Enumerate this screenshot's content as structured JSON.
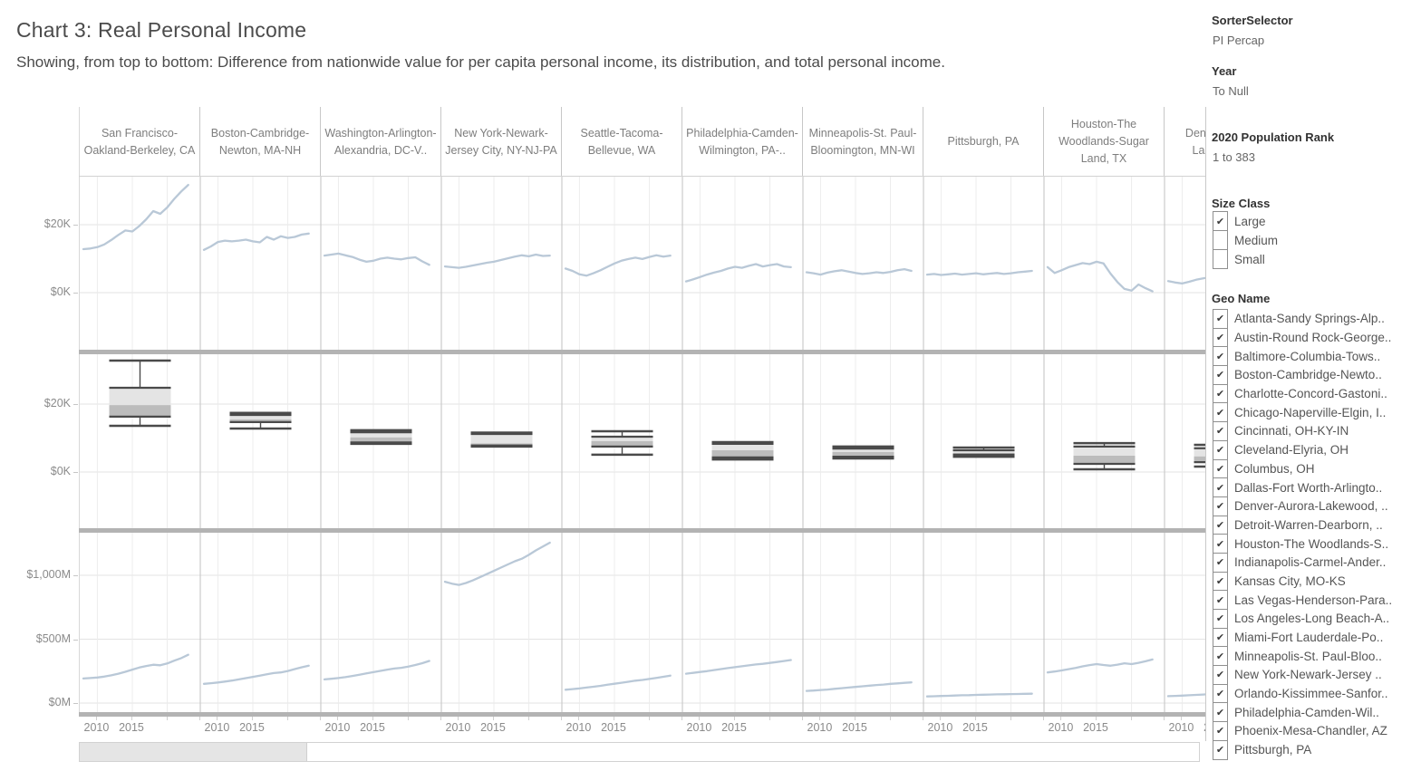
{
  "header": {
    "title": "Chart 3: Real Personal Income",
    "subtitle": "Showing, from top to bottom:  Difference from nationwide value for per capita personal income, its distribution, and total personal income."
  },
  "filters": {
    "sorter": {
      "label": "SorterSelector",
      "value": "PI Percap"
    },
    "year": {
      "label": "Year",
      "value": "To Null"
    },
    "population_rank": {
      "label": "2020 Population Rank",
      "value": "1 to 383"
    },
    "size_class": {
      "label": "Size Class",
      "options": [
        {
          "label": "Large",
          "checked": true
        },
        {
          "label": "Medium",
          "checked": false
        },
        {
          "label": "Small",
          "checked": false
        }
      ]
    },
    "geo_name": {
      "label": "Geo Name",
      "options": [
        {
          "label": "Atlanta-Sandy Springs-Alp..",
          "checked": true
        },
        {
          "label": "Austin-Round Rock-George..",
          "checked": true
        },
        {
          "label": "Baltimore-Columbia-Tows..",
          "checked": true
        },
        {
          "label": "Boston-Cambridge-Newto..",
          "checked": true
        },
        {
          "label": "Charlotte-Concord-Gastoni..",
          "checked": true
        },
        {
          "label": "Chicago-Naperville-Elgin, I..",
          "checked": true
        },
        {
          "label": "Cincinnati, OH-KY-IN",
          "checked": true
        },
        {
          "label": "Cleveland-Elyria, OH",
          "checked": true
        },
        {
          "label": "Columbus, OH",
          "checked": true
        },
        {
          "label": "Dallas-Fort Worth-Arlingto..",
          "checked": true
        },
        {
          "label": "Denver-Aurora-Lakewood, ..",
          "checked": true
        },
        {
          "label": "Detroit-Warren-Dearborn, ..",
          "checked": true
        },
        {
          "label": "Houston-The Woodlands-S..",
          "checked": true
        },
        {
          "label": "Indianapolis-Carmel-Ander..",
          "checked": true
        },
        {
          "label": "Kansas City, MO-KS",
          "checked": true
        },
        {
          "label": "Las Vegas-Henderson-Para..",
          "checked": true
        },
        {
          "label": "Los Angeles-Long Beach-A..",
          "checked": true
        },
        {
          "label": "Miami-Fort Lauderdale-Po..",
          "checked": true
        },
        {
          "label": "Minneapolis-St. Paul-Bloo..",
          "checked": true
        },
        {
          "label": "New York-Newark-Jersey ..",
          "checked": true
        },
        {
          "label": "Orlando-Kissimmee-Sanfor..",
          "checked": true
        },
        {
          "label": "Philadelphia-Camden-Wil..",
          "checked": true
        },
        {
          "label": "Phoenix-Mesa-Chandler, AZ",
          "checked": true
        },
        {
          "label": "Pittsburgh, PA",
          "checked": true
        }
      ]
    }
  },
  "chart_data": {
    "type": "small-multiples",
    "title": "Chart 3: Real Personal Income",
    "x": [
      2008,
      2009,
      2010,
      2011,
      2012,
      2013,
      2014,
      2015,
      2016,
      2017,
      2018,
      2019,
      2020,
      2021,
      2022,
      2023
    ],
    "x_ticks": [
      "2010",
      "2015"
    ],
    "grid_years": [
      2010,
      2015,
      2020
    ],
    "rows": [
      {
        "id": "percap_diff",
        "label": "Difference from nationwide value for per capita personal income",
        "type": "line",
        "ylabel_ticks": [
          "$20K",
          "$0K"
        ],
        "tick_values": [
          20,
          0
        ],
        "ylim": [
          -16.8,
          34.1
        ]
      },
      {
        "id": "percap_distribution",
        "label": "Distribution of per capita personal income difference",
        "type": "boxplot",
        "ylabel_ticks": [
          "$20K",
          "$0K"
        ],
        "tick_values": [
          20,
          0
        ],
        "ylim": [
          -16.3,
          34.7
        ]
      },
      {
        "id": "total_income",
        "label": "Total personal income",
        "type": "line",
        "ylabel_ticks": [
          "$1,000M",
          "$500M",
          "$0M"
        ],
        "tick_values": [
          1000,
          500,
          0
        ],
        "ylim": [
          -64,
          1333
        ]
      }
    ],
    "columns": [
      {
        "name": "San Francisco-Oakland-Berkeley, CA",
        "percap_diff": [
          12.8,
          13.0,
          13.4,
          14.2,
          15.5,
          17.0,
          18.3,
          18.0,
          19.6,
          21.6,
          24.0,
          23.2,
          25.1,
          27.6,
          29.8,
          31.7
        ],
        "box": {
          "low": 13.6,
          "q1": 16.3,
          "median": 19.7,
          "q3": 24.8,
          "high": 32.8
        },
        "total": [
          192,
          196,
          200,
          207,
          217,
          230,
          245,
          262,
          278,
          290,
          300,
          296,
          310,
          332,
          352,
          378
        ]
      },
      {
        "name": "Boston-Cambridge-Newton, MA-NH",
        "percap_diff": [
          12.6,
          13.6,
          14.9,
          15.3,
          15.1,
          15.3,
          15.6,
          15.1,
          14.8,
          16.4,
          15.6,
          16.6,
          16.1,
          16.4,
          17.1,
          17.4
        ],
        "box": {
          "low": 12.8,
          "q1": 14.7,
          "median": 15.5,
          "q3": 16.8,
          "high": 17.4
        },
        "total": [
          150,
          155,
          161,
          168,
          176,
          185,
          195,
          205,
          215,
          225,
          235,
          240,
          251,
          266,
          280,
          292
        ]
      },
      {
        "name": "Washington-Arlington-Alexandria, DC-V..",
        "percap_diff": [
          10.9,
          11.2,
          11.5,
          11.0,
          10.5,
          9.7,
          9.1,
          9.4,
          10.0,
          10.3,
          10.0,
          9.8,
          10.2,
          10.4,
          9.2,
          8.2
        ],
        "box": {
          "low": 8.3,
          "q1": 8.7,
          "median": 10.2,
          "q3": 11.7,
          "high": 12.3
        },
        "total": [
          185,
          190,
          196,
          203,
          212,
          222,
          232,
          242,
          252,
          262,
          270,
          276,
          286,
          298,
          312,
          330
        ]
      },
      {
        "name": "New York-Newark-Jersey City, NY-NJ-PA",
        "percap_diff": [
          7.7,
          7.5,
          7.3,
          7.6,
          8.0,
          8.4,
          8.8,
          9.1,
          9.6,
          10.1,
          10.6,
          11.0,
          10.7,
          11.2,
          10.8,
          10.9
        ],
        "box": {
          "low": 7.5,
          "q1": 7.8,
          "median": 8.4,
          "q3": 11.2,
          "high": 11.6
        },
        "total": [
          950,
          935,
          925,
          940,
          960,
          985,
          1010,
          1035,
          1060,
          1085,
          1110,
          1130,
          1160,
          1195,
          1225,
          1255
        ]
      },
      {
        "name": "Seattle-Tacoma-Bellevue, WA",
        "percap_diff": [
          7.1,
          6.4,
          5.4,
          5.0,
          5.7,
          6.6,
          7.6,
          8.6,
          9.4,
          9.9,
          10.3,
          9.9,
          10.5,
          11.0,
          10.6,
          10.9
        ],
        "box": {
          "low": 5.1,
          "q1": 7.5,
          "median": 9.1,
          "q3": 10.4,
          "high": 12.0
        },
        "total": [
          104,
          109,
          114,
          121,
          128,
          135,
          143,
          151,
          159,
          167,
          175,
          181,
          189,
          197,
          206,
          215
        ]
      },
      {
        "name": "Philadelphia-Camden-Wilmington, PA-..",
        "percap_diff": [
          3.3,
          3.9,
          4.6,
          5.3,
          5.9,
          6.4,
          7.1,
          7.6,
          7.3,
          7.9,
          8.4,
          7.7,
          8.1,
          8.4,
          7.7,
          7.5
        ],
        "box": {
          "low": 3.7,
          "q1": 4.3,
          "median": 6.4,
          "q3": 8.3,
          "high": 8.8
        },
        "total": [
          230,
          236,
          243,
          250,
          258,
          266,
          274,
          281,
          288,
          295,
          302,
          307,
          314,
          321,
          329,
          337
        ]
      },
      {
        "name": "Minneapolis-St. Paul-Bloomington, MN-WI",
        "percap_diff": [
          6.0,
          5.7,
          5.3,
          5.9,
          6.3,
          6.6,
          6.2,
          5.8,
          5.5,
          5.7,
          6.0,
          5.8,
          6.1,
          6.6,
          6.9,
          6.4
        ],
        "box": {
          "low": 4.0,
          "q1": 4.5,
          "median": 5.9,
          "q3": 6.9,
          "high": 7.5
        },
        "total": [
          95,
          98,
          102,
          106,
          111,
          116,
          121,
          126,
          131,
          136,
          141,
          145,
          150,
          154,
          158,
          162
        ]
      },
      {
        "name": "Pittsburgh, PA",
        "percap_diff": [
          5.3,
          5.5,
          5.2,
          5.4,
          5.6,
          5.3,
          5.5,
          5.7,
          5.4,
          5.6,
          5.8,
          5.5,
          5.7,
          6.0,
          6.2,
          6.4
        ],
        "box": {
          "low": 4.5,
          "q1": 5.1,
          "median": 5.6,
          "q3": 6.4,
          "high": 7.2
        },
        "total": [
          52,
          53,
          55,
          57,
          59,
          61,
          62,
          64,
          65,
          67,
          68,
          69,
          70,
          71,
          72,
          73
        ]
      },
      {
        "name": "Houston-The Woodlands-Sugar Land, TX",
        "percap_diff": [
          7.5,
          5.8,
          6.6,
          7.5,
          8.1,
          8.7,
          8.4,
          9.1,
          8.6,
          5.6,
          3.1,
          1.1,
          0.6,
          2.4,
          1.3,
          0.4
        ],
        "box": {
          "low": 0.8,
          "q1": 2.4,
          "median": 4.8,
          "q3": 7.5,
          "high": 8.5
        },
        "total": [
          240,
          247,
          255,
          265,
          275,
          287,
          297,
          305,
          298,
          292,
          301,
          311,
          305,
          315,
          327,
          341
        ]
      },
      {
        "name": "Denver-Aurora-Lakewood, ..",
        "percap_diff": [
          3.4,
          3.0,
          2.7,
          3.2,
          3.8,
          4.2,
          4.6,
          4.4,
          4.8,
          5.0,
          4.7,
          4.9,
          5.2,
          5.4,
          5.1,
          5.3
        ],
        "box": {
          "low": 1.6,
          "q1": 2.9,
          "median": 4.6,
          "q3": 7.0,
          "high": 8.0
        },
        "total": [
          54,
          56,
          58,
          61,
          64,
          67,
          70,
          73,
          76,
          79,
          82,
          85,
          88,
          92,
          96,
          100
        ]
      }
    ],
    "colors": {
      "line": "#b9c8d7",
      "box_fill_upper": "#e4e4e4",
      "box_fill_lower": "#bcbcbc",
      "box_stroke": "#4a4a4a",
      "divider": "#b3b3b3"
    }
  }
}
